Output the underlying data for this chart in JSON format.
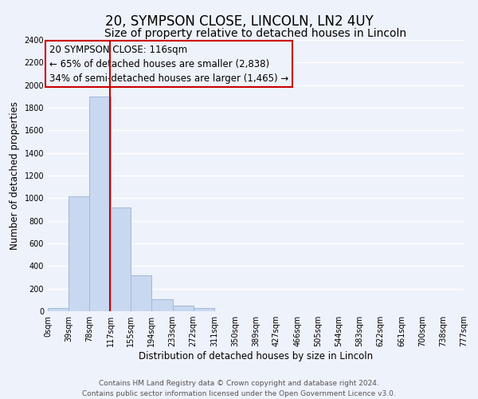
{
  "title": "20, SYMPSON CLOSE, LINCOLN, LN2 4UY",
  "subtitle": "Size of property relative to detached houses in Lincoln",
  "xlabel": "Distribution of detached houses by size in Lincoln",
  "ylabel": "Number of detached properties",
  "bar_edges": [
    0,
    39,
    78,
    117,
    155,
    194,
    233,
    272,
    311,
    350,
    389,
    427,
    466,
    505,
    544,
    583,
    622,
    661,
    700,
    738,
    777
  ],
  "bar_heights": [
    25,
    1020,
    1900,
    920,
    320,
    105,
    50,
    30,
    0,
    0,
    0,
    0,
    0,
    0,
    0,
    0,
    0,
    0,
    0,
    0
  ],
  "tick_labels": [
    "0sqm",
    "39sqm",
    "78sqm",
    "117sqm",
    "155sqm",
    "194sqm",
    "233sqm",
    "272sqm",
    "311sqm",
    "350sqm",
    "389sqm",
    "427sqm",
    "466sqm",
    "505sqm",
    "544sqm",
    "583sqm",
    "622sqm",
    "661sqm",
    "700sqm",
    "738sqm",
    "777sqm"
  ],
  "bar_color": "#c8d8f0",
  "bar_edge_color": "#a0b8d8",
  "vline_x": 116,
  "vline_color": "#cc0000",
  "annotation_title": "20 SYMPSON CLOSE: 116sqm",
  "annotation_line1": "← 65% of detached houses are smaller (2,838)",
  "annotation_line2": "34% of semi-detached houses are larger (1,465) →",
  "box_color": "#cc0000",
  "ylim": [
    0,
    2400
  ],
  "yticks": [
    0,
    200,
    400,
    600,
    800,
    1000,
    1200,
    1400,
    1600,
    1800,
    2000,
    2200,
    2400
  ],
  "footer1": "Contains HM Land Registry data © Crown copyright and database right 2024.",
  "footer2": "Contains public sector information licensed under the Open Government Licence v3.0.",
  "background_color": "#eef2fa",
  "grid_color": "#ffffff",
  "title_fontsize": 12,
  "subtitle_fontsize": 10,
  "axis_label_fontsize": 8.5,
  "tick_fontsize": 7,
  "annotation_fontsize": 8.5,
  "footer_fontsize": 6.5
}
